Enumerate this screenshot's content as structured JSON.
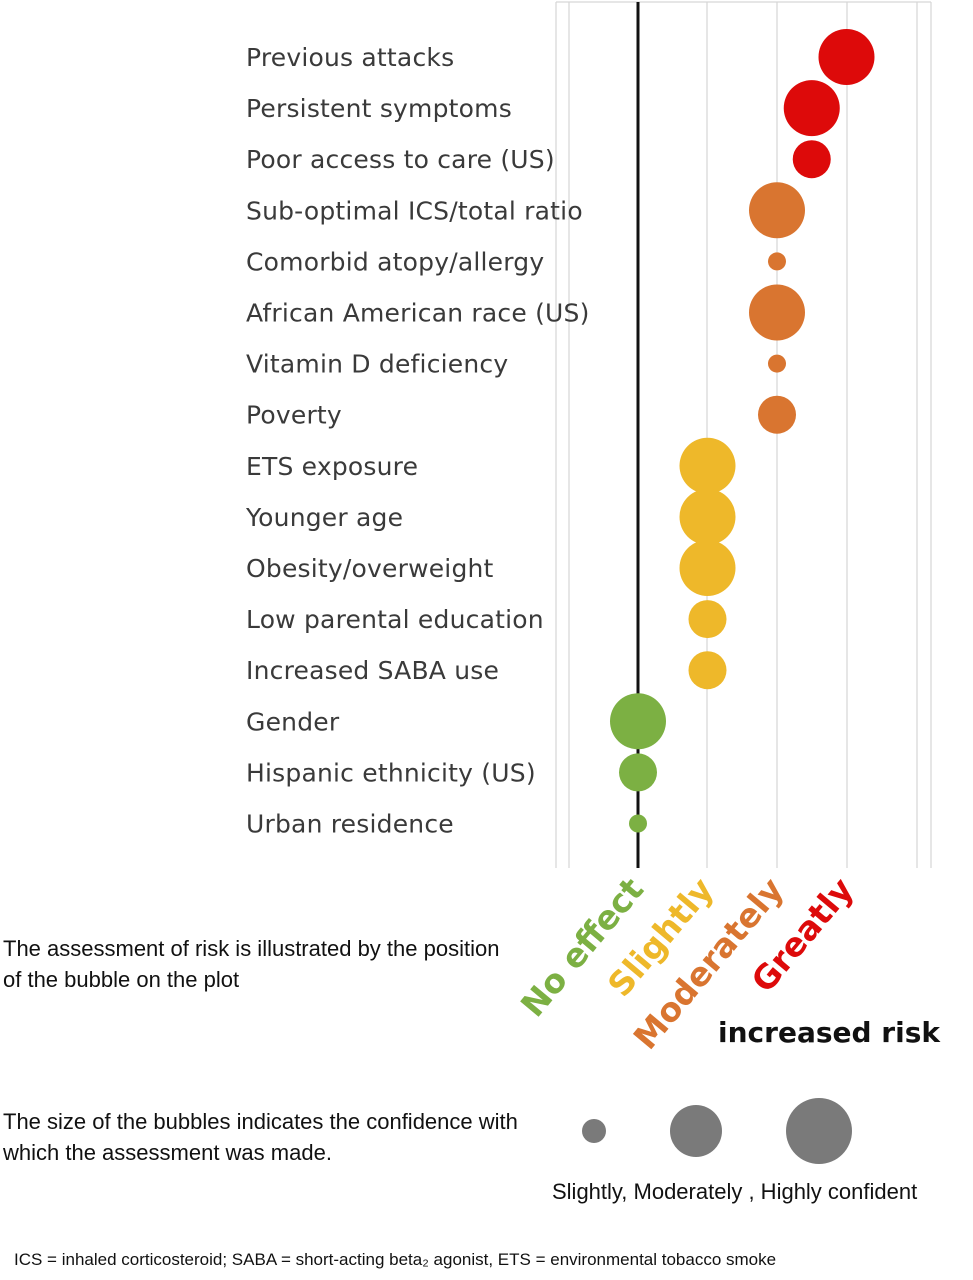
{
  "chart_data": {
    "type": "bubble",
    "categories": [
      "No effect",
      "Slightly",
      "Moderately",
      "Greatly"
    ],
    "category_colors": [
      "#7cb043",
      "#eeb82a",
      "#d97530",
      "#dd0a0a"
    ],
    "axis_title": "increased risk",
    "grid": true,
    "points": [
      {
        "label": "Previous attacks",
        "risk_level": 3.0,
        "confidence": 3
      },
      {
        "label": "Persistent symptoms",
        "risk_level": 2.5,
        "confidence": 3
      },
      {
        "label": "Poor access to care (US)",
        "risk_level": 2.5,
        "confidence": 2
      },
      {
        "label": "Sub-optimal ICS/total ratio",
        "risk_level": 2.0,
        "confidence": 3
      },
      {
        "label": "Comorbid atopy/allergy",
        "risk_level": 2.0,
        "confidence": 1
      },
      {
        "label": "African American race (US)",
        "risk_level": 2.0,
        "confidence": 3
      },
      {
        "label": "Vitamin D deficiency",
        "risk_level": 2.0,
        "confidence": 1
      },
      {
        "label": "Poverty",
        "risk_level": 2.0,
        "confidence": 2
      },
      {
        "label": "ETS exposure",
        "risk_level": 1.0,
        "confidence": 3
      },
      {
        "label": "Younger age",
        "risk_level": 1.0,
        "confidence": 3
      },
      {
        "label": "Obesity/overweight",
        "risk_level": 1.0,
        "confidence": 3
      },
      {
        "label": "Low parental education",
        "risk_level": 1.0,
        "confidence": 2
      },
      {
        "label": "Increased SABA use",
        "risk_level": 1.0,
        "confidence": 2
      },
      {
        "label": "Gender",
        "risk_level": 0.0,
        "confidence": 3
      },
      {
        "label": "Hispanic ethnicity (US)",
        "risk_level": 0.0,
        "confidence": 2
      },
      {
        "label": "Urban residence",
        "risk_level": 0.0,
        "confidence": 1
      }
    ],
    "confidence_legend": {
      "levels": [
        1,
        2,
        3
      ],
      "caption": "Slightly,  Moderately ,  Highly confident",
      "color": "#7a7a7a"
    }
  },
  "explanations": {
    "position": "The assessment of risk is illustrated by the position of the bubble on the plot",
    "size": "The size of the bubbles indicates the confidence with which the assessment was made."
  },
  "footnote": "ICS = inhaled corticosteroid;   SABA = short-acting beta₂ agonist,   ETS = environmental tobacco smoke"
}
